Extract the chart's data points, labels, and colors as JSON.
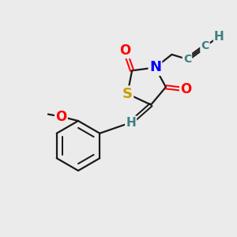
{
  "bg_color": "#ebebeb",
  "atom_colors": {
    "C": "#2d6b6b",
    "H": "#2d6b6b",
    "N": "#0000ff",
    "O": "#ff0000",
    "S": "#c8a000"
  },
  "bond_color": "#1a1a1a",
  "bond_width": 1.6,
  "font_size_atom": 13,
  "font_size_h": 11
}
